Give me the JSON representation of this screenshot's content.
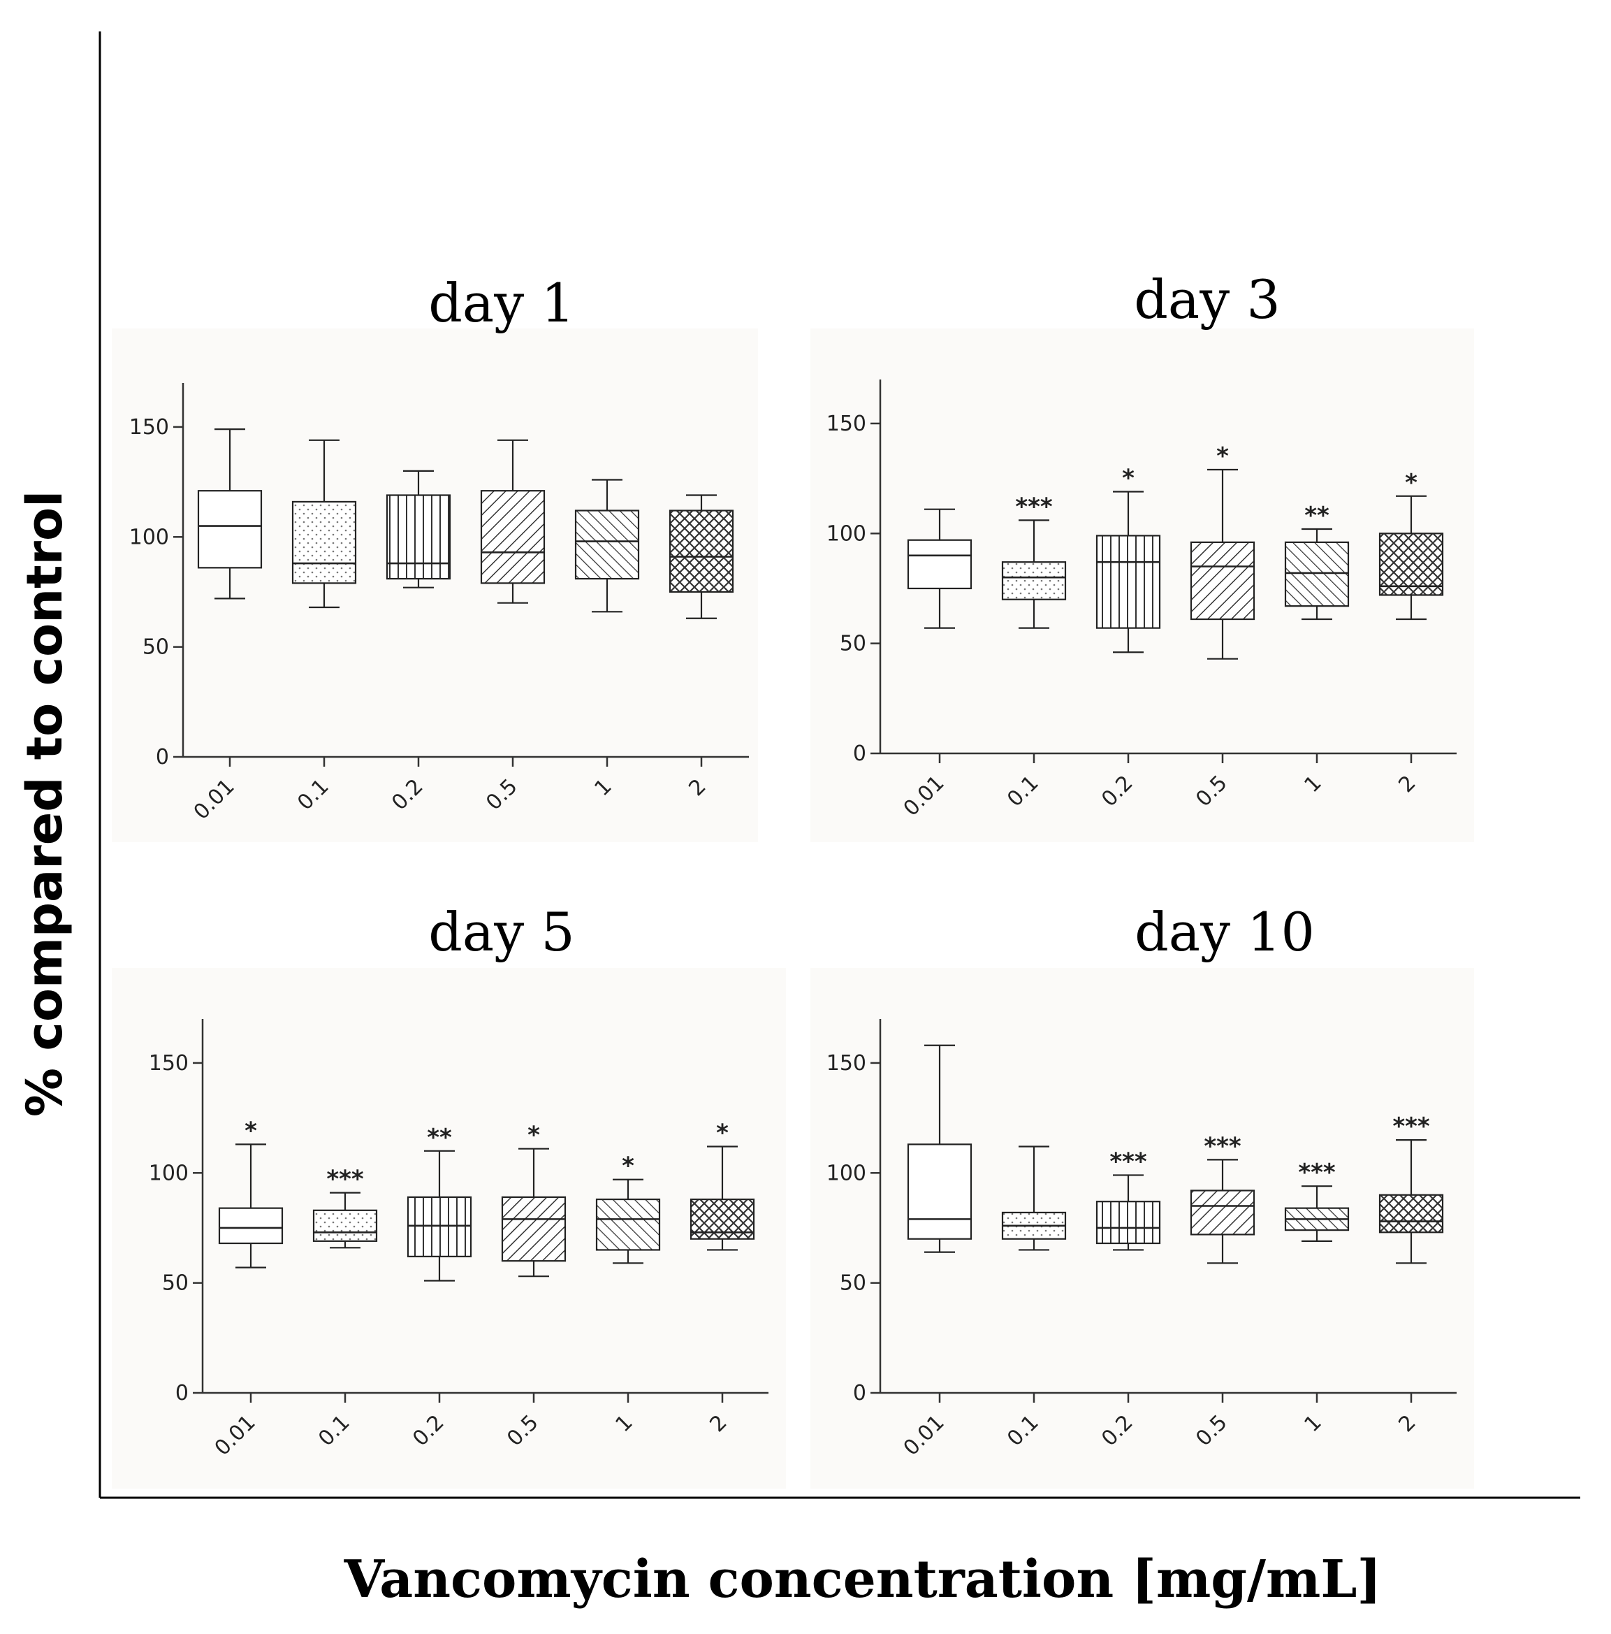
{
  "figure": {
    "ylabel": "% compared to control",
    "xlabel": "Vancomycin concentration [mg/mL]"
  },
  "chart_data": [
    {
      "type": "box",
      "title": "day 1",
      "categories": [
        "0.01",
        "0.1",
        "0.2",
        "0.5",
        "1",
        "2"
      ],
      "ylim": [
        0,
        170
      ],
      "yticks": [
        0,
        50,
        100,
        150
      ],
      "boxes": [
        {
          "min": 72,
          "q1": 86,
          "median": 105,
          "q3": 121,
          "max": 149,
          "sig": ""
        },
        {
          "min": 68,
          "q1": 79,
          "median": 88,
          "q3": 116,
          "max": 144,
          "sig": ""
        },
        {
          "min": 77,
          "q1": 81,
          "median": 88,
          "q3": 119,
          "max": 130,
          "sig": ""
        },
        {
          "min": 70,
          "q1": 79,
          "median": 93,
          "q3": 121,
          "max": 144,
          "sig": ""
        },
        {
          "min": 66,
          "q1": 81,
          "median": 98,
          "q3": 112,
          "max": 126,
          "sig": ""
        },
        {
          "min": 63,
          "q1": 75,
          "median": 91,
          "q3": 112,
          "max": 119,
          "sig": ""
        }
      ]
    },
    {
      "type": "box",
      "title": "day 3",
      "categories": [
        "0.01",
        "0.1",
        "0.2",
        "0.5",
        "1",
        "2"
      ],
      "ylim": [
        0,
        170
      ],
      "yticks": [
        0,
        50,
        100,
        150
      ],
      "boxes": [
        {
          "min": 57,
          "q1": 75,
          "median": 90,
          "q3": 97,
          "max": 111,
          "sig": ""
        },
        {
          "min": 57,
          "q1": 70,
          "median": 80,
          "q3": 87,
          "max": 106,
          "sig": "***"
        },
        {
          "min": 46,
          "q1": 57,
          "median": 87,
          "q3": 99,
          "max": 119,
          "sig": "*"
        },
        {
          "min": 43,
          "q1": 61,
          "median": 85,
          "q3": 96,
          "max": 129,
          "sig": "*"
        },
        {
          "min": 61,
          "q1": 67,
          "median": 82,
          "q3": 96,
          "max": 102,
          "sig": "**"
        },
        {
          "min": 61,
          "q1": 72,
          "median": 76,
          "q3": 100,
          "max": 117,
          "sig": "*"
        }
      ]
    },
    {
      "type": "box",
      "title": "day 5",
      "categories": [
        "0.01",
        "0.1",
        "0.2",
        "0.5",
        "1",
        "2"
      ],
      "ylim": [
        0,
        170
      ],
      "yticks": [
        0,
        50,
        100,
        150
      ],
      "boxes": [
        {
          "min": 57,
          "q1": 68,
          "median": 75,
          "q3": 84,
          "max": 113,
          "sig": "*"
        },
        {
          "min": 66,
          "q1": 69,
          "median": 73,
          "q3": 83,
          "max": 91,
          "sig": "***"
        },
        {
          "min": 51,
          "q1": 62,
          "median": 76,
          "q3": 89,
          "max": 110,
          "sig": "**"
        },
        {
          "min": 53,
          "q1": 60,
          "median": 79,
          "q3": 89,
          "max": 111,
          "sig": "*"
        },
        {
          "min": 59,
          "q1": 65,
          "median": 79,
          "q3": 88,
          "max": 97,
          "sig": "*"
        },
        {
          "min": 65,
          "q1": 70,
          "median": 73,
          "q3": 88,
          "max": 112,
          "sig": "*"
        }
      ]
    },
    {
      "type": "box",
      "title": "day 10",
      "categories": [
        "0.01",
        "0.1",
        "0.2",
        "0.5",
        "1",
        "2"
      ],
      "ylim": [
        0,
        170
      ],
      "yticks": [
        0,
        50,
        100,
        150
      ],
      "boxes": [
        {
          "min": 64,
          "q1": 70,
          "median": 79,
          "q3": 113,
          "max": 158,
          "sig": ""
        },
        {
          "min": 65,
          "q1": 70,
          "median": 76,
          "q3": 82,
          "max": 112,
          "sig": ""
        },
        {
          "min": 65,
          "q1": 68,
          "median": 75,
          "q3": 87,
          "max": 99,
          "sig": "***"
        },
        {
          "min": 59,
          "q1": 72,
          "median": 85,
          "q3": 92,
          "max": 106,
          "sig": "***"
        },
        {
          "min": 69,
          "q1": 74,
          "median": 79,
          "q3": 84,
          "max": 94,
          "sig": "***"
        },
        {
          "min": 59,
          "q1": 73,
          "median": 78,
          "q3": 90,
          "max": 115,
          "sig": "***"
        }
      ]
    }
  ]
}
